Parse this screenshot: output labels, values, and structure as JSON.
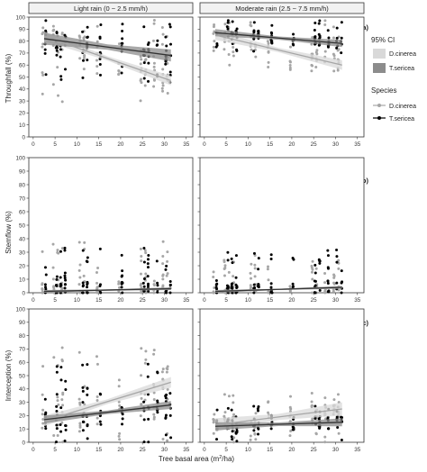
{
  "facets": {
    "light": "Light rain (0 ~ 2.5 mm/h)",
    "moderate": "Moderate rain (2.5 ~ 7.5 mm/h)"
  },
  "legend": {
    "ci_title": "95% CI",
    "ci_items": [
      {
        "label": "D.cinerea",
        "color": "#d9d9d9"
      },
      {
        "label": "T.sericea",
        "color": "#8c8c8c"
      }
    ],
    "species_title": "Species",
    "species_items": [
      {
        "label": "D.cinerea",
        "color": "#a6a6a6"
      },
      {
        "label": "T.sericea",
        "color": "#000000"
      }
    ]
  },
  "x_axis": {
    "label_prefix": "Tree basal area (m",
    "label_sup": "2",
    "label_suffix": "/ha)",
    "ticks": [
      0,
      5,
      10,
      15,
      20,
      25,
      30,
      35
    ],
    "range": [
      -1,
      36.5
    ]
  },
  "colors": {
    "dcinerea_point": "#a6a6a6",
    "tsericea_point": "#000000",
    "dcinerea_line": "#a6a6a6",
    "tsericea_line": "#333333",
    "dcinerea_ci": "#d9d9d9",
    "tsericea_ci": "#8c8c8c",
    "strip_bg": "#f2f2f2"
  },
  "chart_data": [
    {
      "type": "scatter",
      "panel_label": "(a)",
      "ylabel": "Throughfall (%)",
      "ylim": [
        0,
        100
      ],
      "yticks": [
        0,
        10,
        20,
        30,
        40,
        50,
        60,
        70,
        80,
        90,
        100
      ],
      "x_levels": [
        2.5,
        5,
        6,
        7,
        11,
        12,
        15,
        20,
        25,
        26,
        28,
        30,
        31
      ],
      "facets": [
        {
          "facet": "Light rain (0 ~ 2.5 mm/h)",
          "series": [
            {
              "name": "D.cinerea",
              "y_range": [
                28,
                98
              ],
              "fit": {
                "x": [
                  2.5,
                  31.5
                ],
                "y": [
                  84,
                  47
                ]
              },
              "ci_halfwidth": 4
            },
            {
              "name": "T.sericea",
              "y_range": [
                45,
                98
              ],
              "fit": {
                "x": [
                  2.5,
                  31.5
                ],
                "y": [
                  82,
                  68
                ]
              },
              "ci_halfwidth": 5
            }
          ]
        },
        {
          "facet": "Moderate rain (2.5 ~ 7.5 mm/h)",
          "series": [
            {
              "name": "D.cinerea",
              "y_range": [
                55,
                98
              ],
              "fit": {
                "x": [
                  2.5,
                  31.5
                ],
                "y": [
                  85,
                  60
                ]
              },
              "ci_halfwidth": 4
            },
            {
              "name": "T.sericea",
              "y_range": [
                70,
                98
              ],
              "fit": {
                "x": [
                  2.5,
                  31.5
                ],
                "y": [
                  87,
                  78
                ]
              },
              "ci_halfwidth": 3
            }
          ]
        }
      ]
    },
    {
      "type": "scatter",
      "panel_label": "(b)",
      "ylabel": "Stemflow (%)",
      "ylim": [
        0,
        100
      ],
      "yticks": [
        0,
        10,
        20,
        30,
        40,
        50,
        60,
        70,
        80,
        90,
        100
      ],
      "x_levels": [
        2.5,
        5,
        6,
        7,
        11,
        12,
        15,
        20,
        25,
        26,
        28,
        30,
        31
      ],
      "facets": [
        {
          "facet": "Light rain (0 ~ 2.5 mm/h)",
          "series": [
            {
              "name": "D.cinerea",
              "y_range": [
                0,
                38
              ],
              "fit": {
                "x": [
                  2.5,
                  31.5
                ],
                "y": [
                  1,
                  3
                ]
              },
              "ci_halfwidth": 1
            },
            {
              "name": "T.sericea",
              "y_range": [
                0,
                35
              ],
              "fit": {
                "x": [
                  2.5,
                  31.5
                ],
                "y": [
                  1,
                  3
                ]
              },
              "ci_halfwidth": 1
            }
          ]
        },
        {
          "facet": "Moderate rain (2.5 ~ 7.5 mm/h)",
          "series": [
            {
              "name": "D.cinerea",
              "y_range": [
                0,
                28
              ],
              "fit": {
                "x": [
                  2.5,
                  31.5
                ],
                "y": [
                  1,
                  4
                ]
              },
              "ci_halfwidth": 1
            },
            {
              "name": "T.sericea",
              "y_range": [
                0,
                32
              ],
              "fit": {
                "x": [
                  2.5,
                  31.5
                ],
                "y": [
                  1,
                  4
                ]
              },
              "ci_halfwidth": 1
            }
          ]
        }
      ]
    },
    {
      "type": "scatter",
      "panel_label": "(c)",
      "ylabel": "Interception (%)",
      "ylim": [
        0,
        100
      ],
      "yticks": [
        0,
        10,
        20,
        30,
        40,
        50,
        60,
        70,
        80,
        90,
        100
      ],
      "x_levels": [
        2.5,
        5,
        6,
        7,
        11,
        12,
        15,
        20,
        25,
        26,
        28,
        30,
        31
      ],
      "facets": [
        {
          "facet": "Light rain (0 ~ 2.5 mm/h)",
          "series": [
            {
              "name": "D.cinerea",
              "y_range": [
                0,
                72
              ],
              "fit": {
                "x": [
                  2.5,
                  31.5
                ],
                "y": [
                  16,
                  45
                ]
              },
              "ci_halfwidth": 4
            },
            {
              "name": "T.sericea",
              "y_range": [
                0,
                60
              ],
              "fit": {
                "x": [
                  2.5,
                  31.5
                ],
                "y": [
                  17,
                  28
                ]
              },
              "ci_halfwidth": 3
            }
          ]
        },
        {
          "facet": "Moderate rain (2.5 ~ 7.5 mm/h)",
          "series": [
            {
              "name": "D.cinerea",
              "y_range": [
                0,
                38
              ],
              "fit": {
                "x": [
                  2.5,
                  31.5
                ],
                "y": [
                  13,
                  25
                ]
              },
              "ci_halfwidth": 5
            },
            {
              "name": "T.sericea",
              "y_range": [
                0,
                28
              ],
              "fit": {
                "x": [
                  2.5,
                  31.5
                ],
                "y": [
                  12,
                  15
                ]
              },
              "ci_halfwidth": 3
            }
          ]
        }
      ]
    }
  ]
}
